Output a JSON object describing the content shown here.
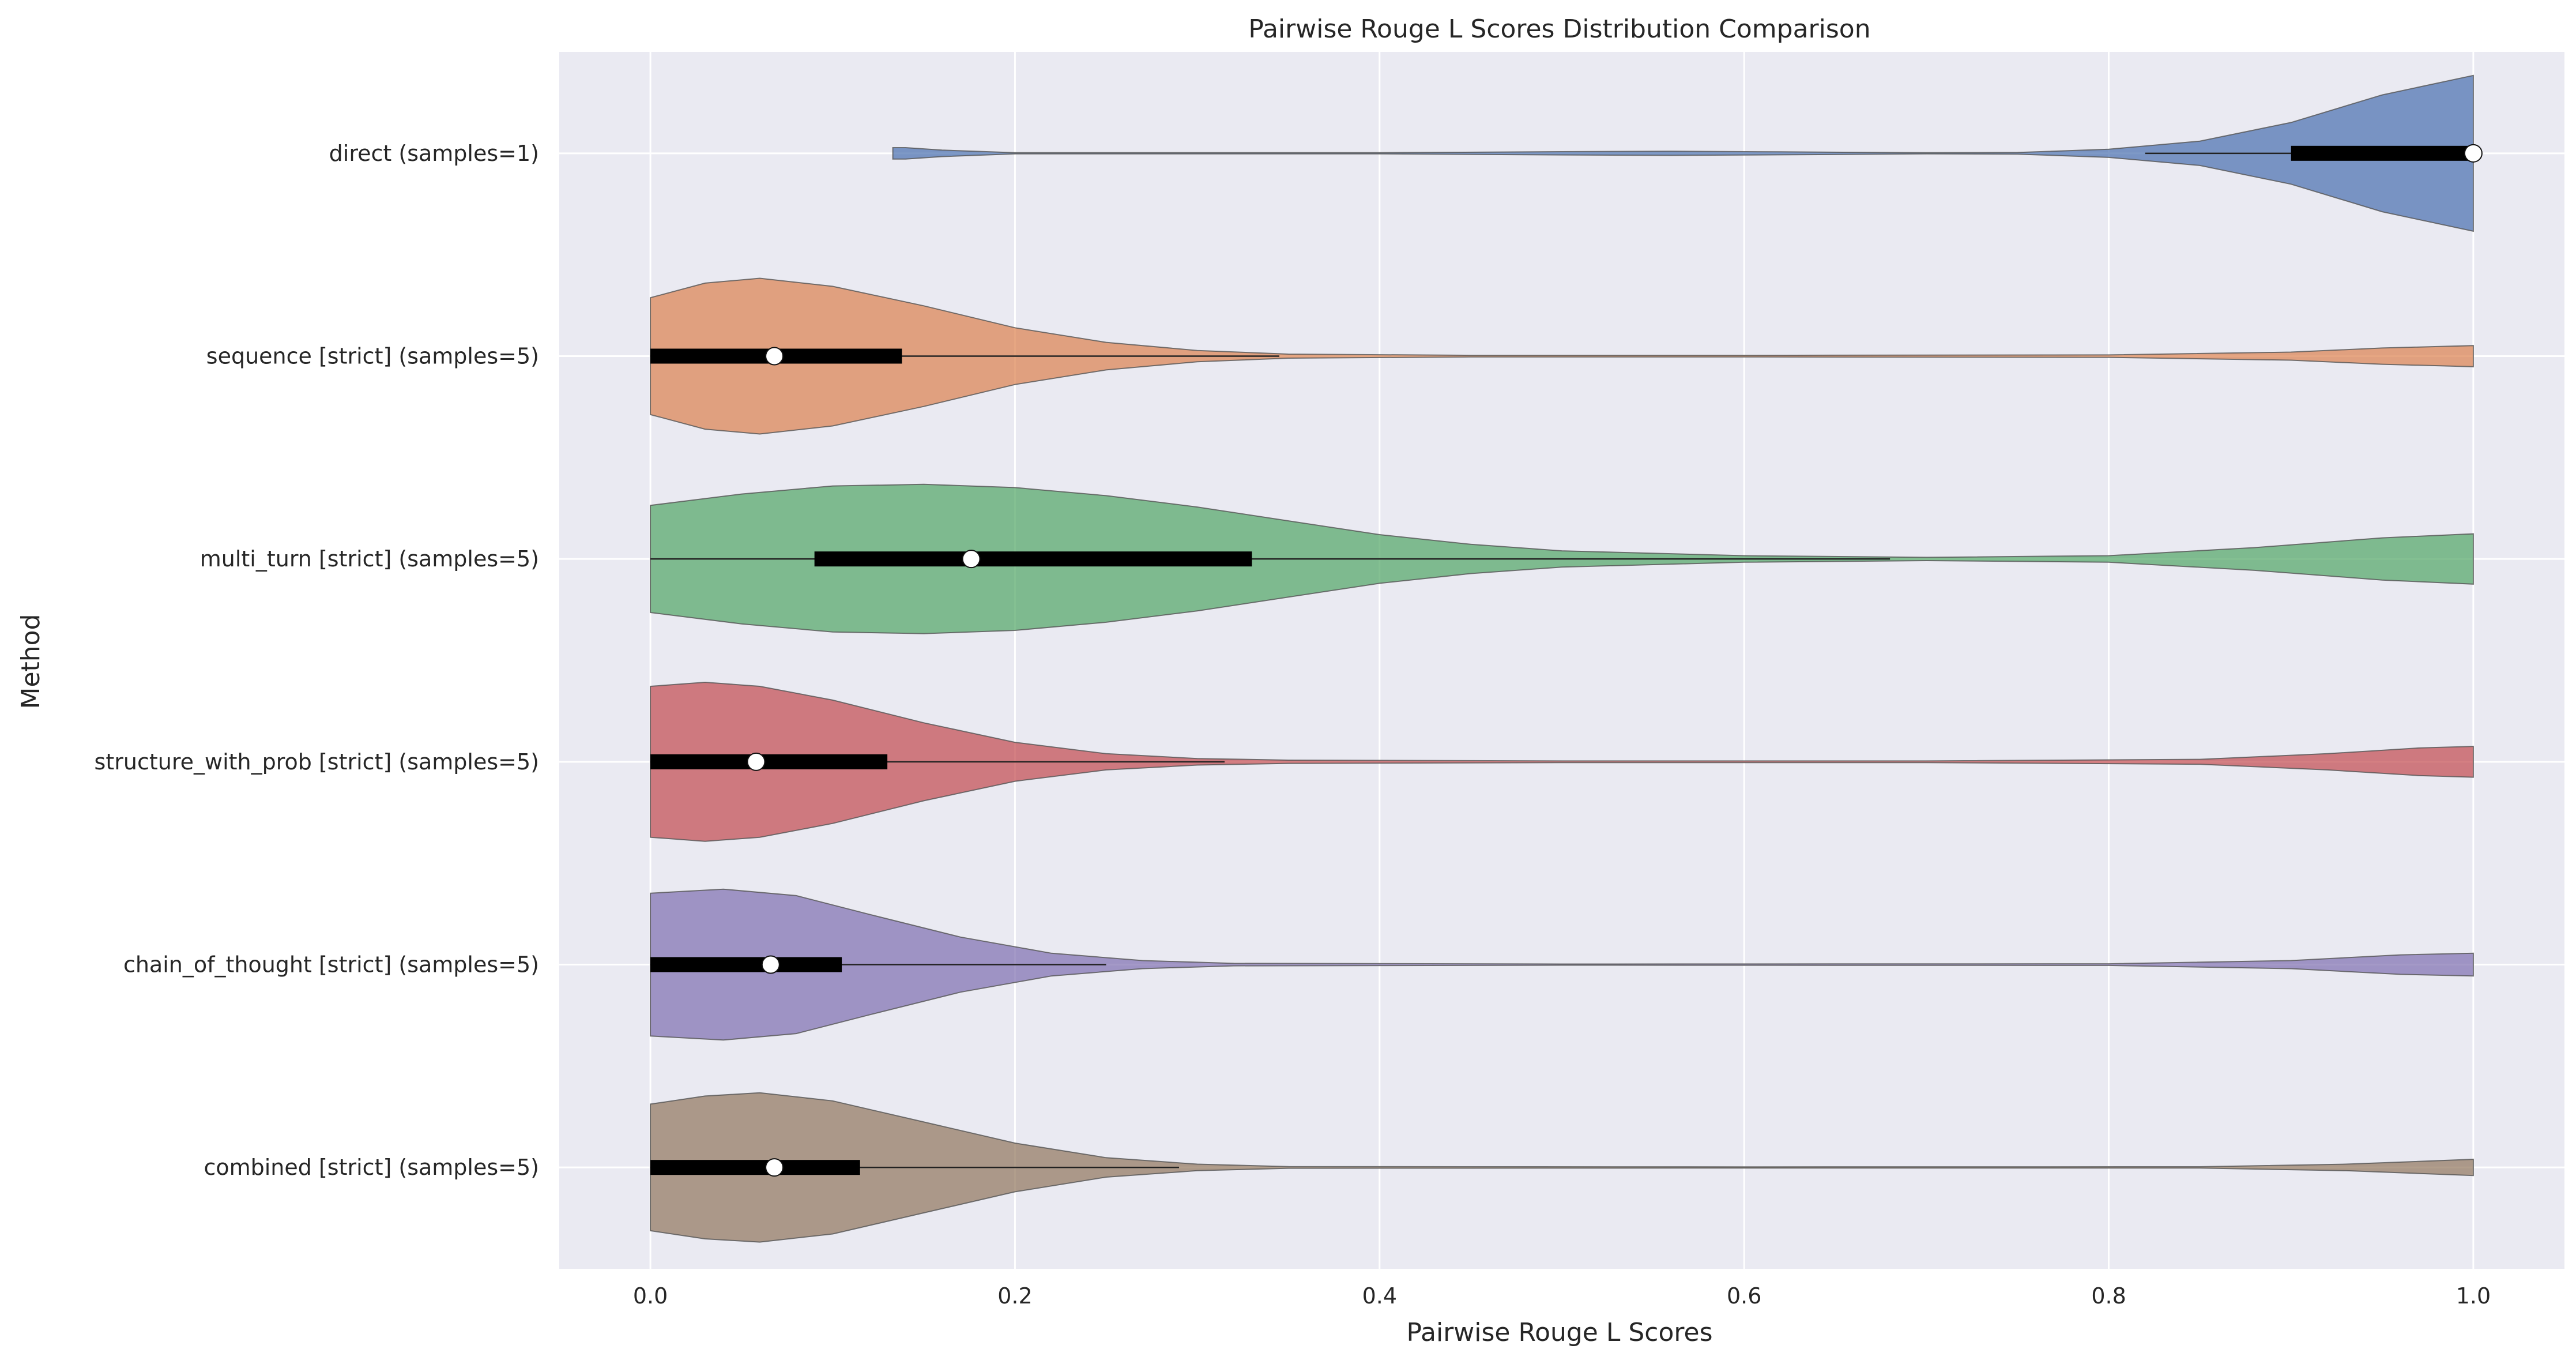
{
  "chart_data": {
    "type": "violin",
    "orientation": "horizontal",
    "title": "Pairwise Rouge L Scores Distribution Comparison",
    "xlabel": "Pairwise Rouge L Scores",
    "ylabel": "Method",
    "xlim": [
      -0.05,
      1.05
    ],
    "x_ticks": [
      "0.0",
      "0.2",
      "0.4",
      "0.6",
      "0.8",
      "1.0"
    ],
    "x_tick_values": [
      0.0,
      0.2,
      0.4,
      0.6,
      0.8,
      1.0
    ],
    "grid": true,
    "series": [
      {
        "name": "direct (samples=1)",
        "color": "#4c72b0",
        "min": 0.133,
        "q1": 0.9,
        "median": 1.0,
        "q3": 1.0,
        "whisker_low": 0.82,
        "whisker_high": 1.0,
        "max": 1.0,
        "density": [
          [
            0.133,
            0.07
          ],
          [
            0.14,
            0.07
          ],
          [
            0.16,
            0.04
          ],
          [
            0.2,
            0.0
          ],
          [
            0.3,
            0.0
          ],
          [
            0.4,
            0.003
          ],
          [
            0.5,
            0.02
          ],
          [
            0.56,
            0.025
          ],
          [
            0.62,
            0.018
          ],
          [
            0.7,
            0.005
          ],
          [
            0.75,
            0.01
          ],
          [
            0.8,
            0.05
          ],
          [
            0.85,
            0.15
          ],
          [
            0.9,
            0.38
          ],
          [
            0.95,
            0.72
          ],
          [
            1.0,
            0.96
          ]
        ]
      },
      {
        "name": "sequence [strict] (samples=5)",
        "color": "#dd8452",
        "min": 0.0,
        "q1": 0.0,
        "median": 0.068,
        "q3": 0.138,
        "whisker_low": 0.0,
        "whisker_high": 0.345,
        "max": 1.0,
        "density": [
          [
            0.0,
            0.72
          ],
          [
            0.03,
            0.9
          ],
          [
            0.06,
            0.96
          ],
          [
            0.1,
            0.86
          ],
          [
            0.15,
            0.62
          ],
          [
            0.2,
            0.35
          ],
          [
            0.25,
            0.17
          ],
          [
            0.3,
            0.07
          ],
          [
            0.35,
            0.025
          ],
          [
            0.45,
            0.01
          ],
          [
            0.6,
            0.01
          ],
          [
            0.8,
            0.015
          ],
          [
            0.9,
            0.05
          ],
          [
            0.95,
            0.1
          ],
          [
            1.0,
            0.13
          ]
        ]
      },
      {
        "name": "multi_turn [strict] (samples=5)",
        "color": "#55a868",
        "min": 0.0,
        "q1": 0.09,
        "median": 0.176,
        "q3": 0.33,
        "whisker_low": 0.0,
        "whisker_high": 0.68,
        "max": 1.0,
        "density": [
          [
            0.0,
            0.66
          ],
          [
            0.05,
            0.8
          ],
          [
            0.1,
            0.9
          ],
          [
            0.15,
            0.92
          ],
          [
            0.2,
            0.88
          ],
          [
            0.25,
            0.78
          ],
          [
            0.3,
            0.64
          ],
          [
            0.35,
            0.47
          ],
          [
            0.4,
            0.3
          ],
          [
            0.45,
            0.18
          ],
          [
            0.5,
            0.1
          ],
          [
            0.6,
            0.04
          ],
          [
            0.7,
            0.02
          ],
          [
            0.8,
            0.04
          ],
          [
            0.88,
            0.14
          ],
          [
            0.95,
            0.26
          ],
          [
            1.0,
            0.31
          ]
        ]
      },
      {
        "name": "structure_with_prob [strict] (samples=5)",
        "color": "#c44e52",
        "min": 0.0,
        "q1": 0.0,
        "median": 0.058,
        "q3": 0.13,
        "whisker_low": 0.0,
        "whisker_high": 0.315,
        "max": 1.0,
        "density": [
          [
            0.0,
            0.93
          ],
          [
            0.03,
            0.98
          ],
          [
            0.06,
            0.93
          ],
          [
            0.1,
            0.76
          ],
          [
            0.15,
            0.48
          ],
          [
            0.2,
            0.24
          ],
          [
            0.25,
            0.1
          ],
          [
            0.3,
            0.04
          ],
          [
            0.35,
            0.02
          ],
          [
            0.5,
            0.01
          ],
          [
            0.7,
            0.01
          ],
          [
            0.85,
            0.03
          ],
          [
            0.92,
            0.1
          ],
          [
            0.97,
            0.17
          ],
          [
            1.0,
            0.19
          ]
        ]
      },
      {
        "name": "chain_of_thought [strict] (samples=5)",
        "color": "#8172b2",
        "min": 0.0,
        "q1": 0.0,
        "median": 0.066,
        "q3": 0.105,
        "whisker_low": 0.0,
        "whisker_high": 0.25,
        "max": 1.0,
        "density": [
          [
            0.0,
            0.88
          ],
          [
            0.04,
            0.93
          ],
          [
            0.08,
            0.85
          ],
          [
            0.12,
            0.62
          ],
          [
            0.17,
            0.34
          ],
          [
            0.22,
            0.14
          ],
          [
            0.27,
            0.05
          ],
          [
            0.32,
            0.015
          ],
          [
            0.5,
            0.005
          ],
          [
            0.8,
            0.01
          ],
          [
            0.9,
            0.05
          ],
          [
            0.96,
            0.12
          ],
          [
            1.0,
            0.14
          ]
        ]
      },
      {
        "name": "combined [strict] (samples=5)",
        "color": "#937860",
        "min": 0.0,
        "q1": 0.0,
        "median": 0.068,
        "q3": 0.115,
        "whisker_low": 0.0,
        "whisker_high": 0.29,
        "max": 1.0,
        "density": [
          [
            0.0,
            0.78
          ],
          [
            0.03,
            0.88
          ],
          [
            0.06,
            0.92
          ],
          [
            0.1,
            0.82
          ],
          [
            0.15,
            0.56
          ],
          [
            0.2,
            0.3
          ],
          [
            0.25,
            0.12
          ],
          [
            0.3,
            0.04
          ],
          [
            0.35,
            0.01
          ],
          [
            0.6,
            0.003
          ],
          [
            0.85,
            0.008
          ],
          [
            0.93,
            0.04
          ],
          [
            1.0,
            0.1
          ]
        ]
      }
    ]
  }
}
